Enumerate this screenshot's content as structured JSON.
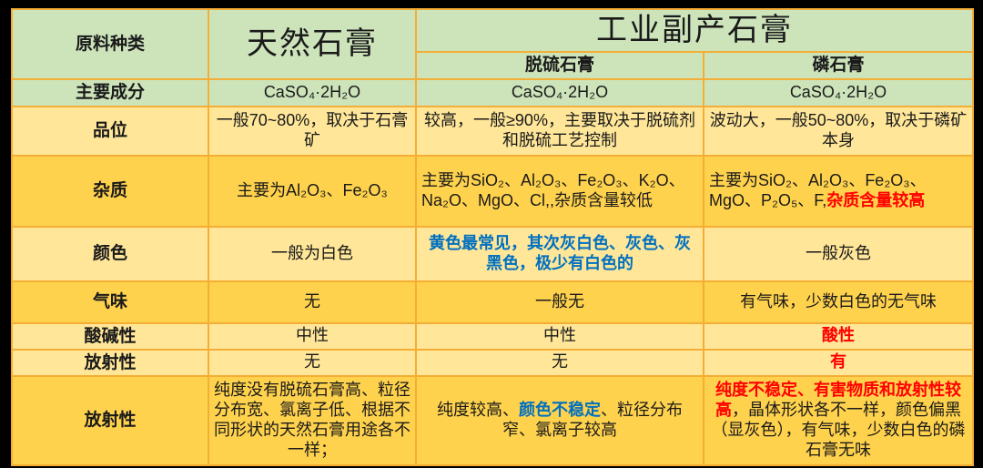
{
  "colors": {
    "background": "#000000",
    "header_green": "#cde4bb",
    "row_light_yellow": "#ffe699",
    "row_dark_yellow": "#ffd24d",
    "grid_orange": "#f4ae35",
    "emphasis_red": "#ff0000",
    "emphasis_blue": "#0070c0"
  },
  "header": {
    "corner": "原料种类",
    "col_natural": "天然石膏",
    "col_industrial": "工业副产石膏",
    "col_desulfurization": "脱硫石膏",
    "col_phosphogypsum": "磷石膏"
  },
  "rows": [
    {
      "label": "主要成分",
      "natural": [
        {
          "t": "CaSO₄·2H₂O"
        }
      ],
      "desulfurization": [
        {
          "t": "CaSO₄·2H₂O"
        }
      ],
      "phosphogypsum": [
        {
          "t": "CaSO₄·2H₂O"
        }
      ]
    },
    {
      "label": "品位",
      "natural": [
        {
          "t": "一般70~80%，取决于石膏矿"
        }
      ],
      "desulfurization": [
        {
          "t": "较高，一般≥90%，主要取决于脱硫剂和脱硫工艺控制"
        }
      ],
      "phosphogypsum": [
        {
          "t": "波动大，一般50~80%，取决于磷矿本身"
        }
      ]
    },
    {
      "label": "杂质",
      "natural": [
        {
          "t": "主要为Al₂O₃、Fe₂O₃"
        }
      ],
      "desulfurization": [
        {
          "t": "主要为SiO₂、Al₂O₃、Fe₂O₃、K₂O、Na₂O、MgO、Cl,,杂质含量较低"
        }
      ],
      "phosphogypsum": [
        {
          "t": "主要为SiO₂、Al₂O₃、Fe₂O₃、MgO、P₂O₅、F,"
        },
        {
          "t": "杂质含量较高",
          "c": "#ff0000",
          "b": true
        }
      ]
    },
    {
      "label": "颜色",
      "natural": [
        {
          "t": "一般为白色"
        }
      ],
      "desulfurization": [
        {
          "t": "黄色最常见，其次灰白色、灰色、灰黑色，极少有白色的",
          "c": "#0070c0",
          "b": true
        }
      ],
      "phosphogypsum": [
        {
          "t": "一般灰色"
        }
      ]
    },
    {
      "label": "气味",
      "natural": [
        {
          "t": "无"
        }
      ],
      "desulfurization": [
        {
          "t": "一般无"
        }
      ],
      "phosphogypsum": [
        {
          "t": "有气味，少数白色的无气味"
        }
      ]
    },
    {
      "label": "酸碱性",
      "natural": [
        {
          "t": "中性"
        }
      ],
      "desulfurization": [
        {
          "t": "中性"
        }
      ],
      "phosphogypsum": [
        {
          "t": "酸性",
          "c": "#ff0000",
          "b": true
        }
      ]
    },
    {
      "label": "放射性",
      "natural": [
        {
          "t": "无"
        }
      ],
      "desulfurization": [
        {
          "t": "无"
        }
      ],
      "phosphogypsum": [
        {
          "t": "有",
          "c": "#ff0000",
          "b": true
        }
      ]
    },
    {
      "label": "放射性",
      "natural": [
        {
          "t": "纯度没有脱硫石膏高、粒径分布宽、氯离子低、根据不同形状的天然石膏用途各不一样；"
        }
      ],
      "desulfurization": [
        {
          "t": "纯度较高、"
        },
        {
          "t": "颜色不稳定",
          "c": "#0070c0",
          "b": true
        },
        {
          "t": "、粒径分布窄、氯离子较高"
        }
      ],
      "phosphogypsum": [
        {
          "t": "纯度不稳定、有害物质和放射性较高",
          "c": "#ff0000",
          "b": true
        },
        {
          "t": "，晶体形状各不一样，颜色偏黑（显灰色），有气味，少数白色的磷石膏无味"
        }
      ]
    }
  ]
}
